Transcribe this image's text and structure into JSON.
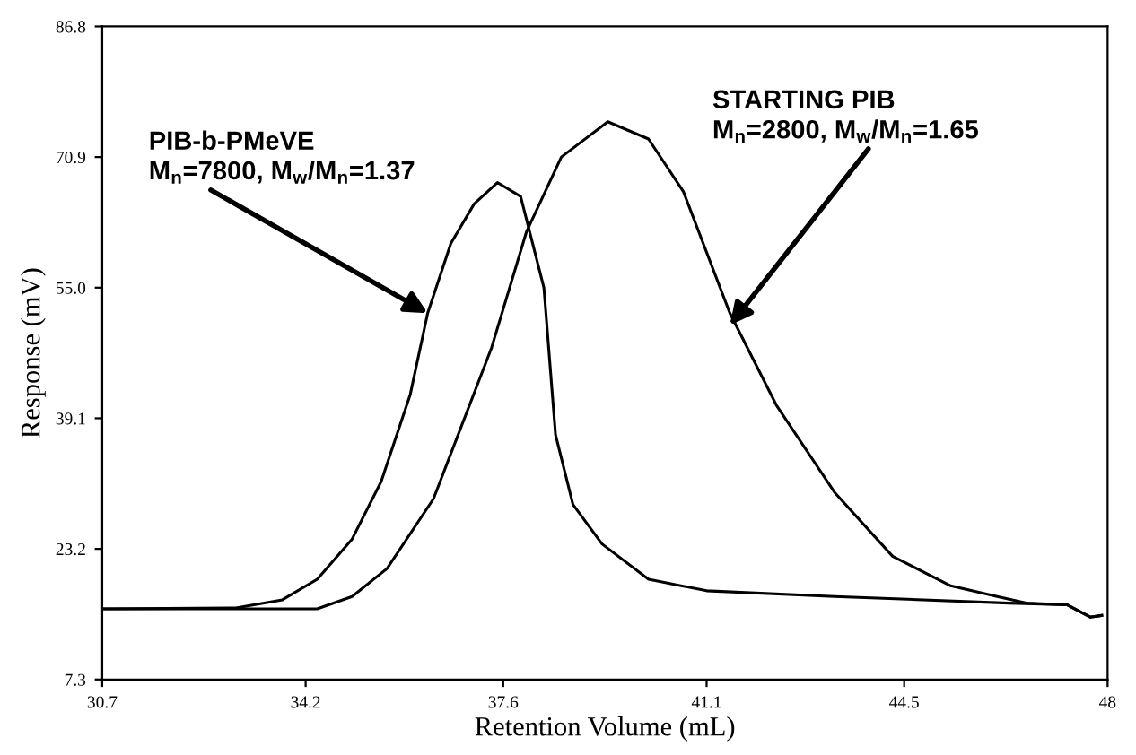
{
  "chart_data": {
    "type": "line",
    "xlabel": "Retention Volume (mL)",
    "ylabel": "Response (mV)",
    "xlim": [
      30.7,
      48
    ],
    "xticks": [
      30.7,
      34.2,
      37.6,
      41.1,
      44.5,
      48
    ],
    "ylim": [
      7.3,
      86.8
    ],
    "yticks": [
      7.3,
      23.2,
      39.1,
      {
        "value": 55.0,
        "label": "55.0"
      },
      70.9,
      86.8
    ],
    "grid": false,
    "marker": "none",
    "line_style": "solid",
    "series": [
      {
        "color": "#000000",
        "x": [
          30.7,
          33.0,
          33.8,
          34.4,
          35.0,
          35.5,
          36.0,
          36.3,
          36.7,
          37.1,
          37.5,
          37.9,
          38.3,
          38.5,
          38.8,
          39.3,
          40.1,
          41.1,
          43.3,
          46.3,
          47.3,
          47.7,
          47.9
        ],
        "values": [
          15.9,
          16.0,
          17.0,
          19.5,
          24.4,
          31.4,
          42.0,
          51.9,
          60.4,
          65.2,
          67.8,
          66.1,
          55.0,
          37.1,
          28.6,
          23.8,
          19.5,
          18.1,
          17.4,
          16.6,
          16.4,
          14.9,
          15.1
        ]
      },
      {
        "color": "#000000",
        "x": [
          30.7,
          34.4,
          35.0,
          35.6,
          36.4,
          37.4,
          38.0,
          38.6,
          39.4,
          40.1,
          40.7,
          41.5,
          42.3,
          43.3,
          44.3,
          45.3,
          46.1,
          46.6,
          47.3,
          47.7,
          47.9
        ],
        "values": [
          15.9,
          15.9,
          17.4,
          20.8,
          29.3,
          47.7,
          61.8,
          70.9,
          75.2,
          73.1,
          66.7,
          51.9,
          40.7,
          30.1,
          22.3,
          18.7,
          17.4,
          16.6,
          16.4,
          14.9,
          15.1
        ]
      }
    ],
    "annotations": [
      {
        "text": "PIB-b-PMeVE\nM$_{n}$=7800, M$_{w}$/M$_{n}$=1.37",
        "x": 36.3,
        "y": 51.9
      },
      {
        "text": "STARTING PIB\nM$_{n}$=2800, M$_{w}$/M$_{n}$=1.65",
        "x": 41.5,
        "y": 50.4
      }
    ]
  }
}
